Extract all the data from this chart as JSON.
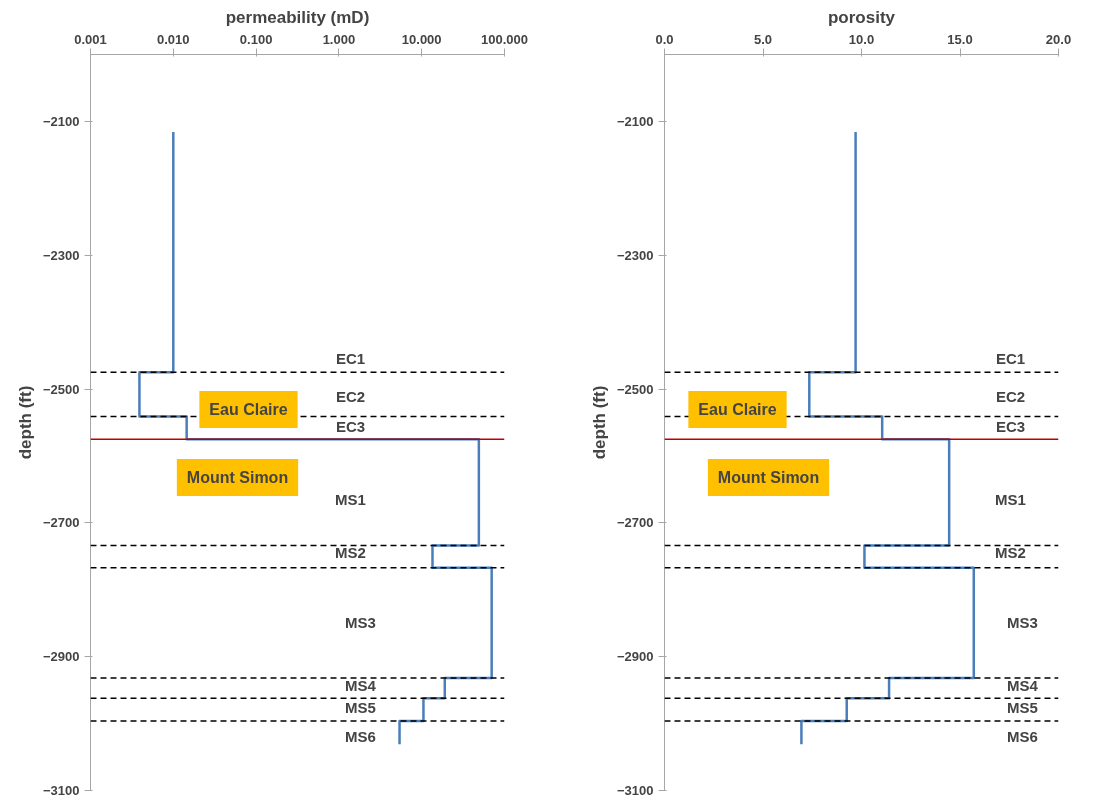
{
  "chart_data": [
    {
      "type": "line",
      "title": "permeability (mD)",
      "ylabel": "depth (ft)",
      "log": "x",
      "xlim": [
        0.001,
        100
      ],
      "xticks": [
        {
          "value": 0.001,
          "label": "0.001"
        },
        {
          "value": 0.01,
          "label": "0.010"
        },
        {
          "value": 0.1,
          "label": "0.100"
        },
        {
          "value": 1,
          "label": "1.000"
        },
        {
          "value": 10,
          "label": "10.000"
        },
        {
          "value": 100,
          "label": "100.000"
        }
      ],
      "ylim": [
        -3100,
        -2000
      ],
      "yticks": [
        -3100,
        -2900,
        -2700,
        -2500,
        -2300,
        -2100
      ],
      "series": [
        {
          "color": "#4a7ebb",
          "x": [
            0.01,
            0.01,
            0.0039,
            0.0039,
            0.0145,
            0.0145,
            49,
            49,
            13.5,
            13.5,
            70,
            70,
            19,
            19,
            10.5,
            10.5,
            5.4,
            5.4
          ],
          "values": [
            -2116,
            -2475,
            -2475,
            -2541,
            -2541,
            -2575,
            -2575,
            -2734,
            -2734,
            -2767,
            -2767,
            -2932,
            -2932,
            -2962,
            -2962,
            -2996,
            -2996,
            -3031
          ]
        }
      ],
      "ref_lines": [
        {
          "axis": "y",
          "value": -2475,
          "color": "#000000",
          "line_style": "dashed"
        },
        {
          "axis": "y",
          "value": -2541,
          "color": "#000000",
          "line_style": "dashed"
        },
        {
          "axis": "y",
          "value": -2575,
          "color": "#c00000",
          "line_style": "solid"
        },
        {
          "axis": "y",
          "value": -2734,
          "color": "#000000",
          "line_style": "dashed"
        },
        {
          "axis": "y",
          "value": -2767,
          "color": "#000000",
          "line_style": "dashed"
        },
        {
          "axis": "y",
          "value": -2932,
          "color": "#000000",
          "line_style": "dashed"
        },
        {
          "axis": "y",
          "value": -2962,
          "color": "#000000",
          "line_style": "dashed"
        },
        {
          "axis": "y",
          "value": -2996,
          "color": "#000000",
          "line_style": "dashed"
        }
      ],
      "annotations": [
        "Eau Claire",
        "Mount Simon",
        "EC1",
        "EC2",
        "EC3",
        "MS1",
        "MS2",
        "MS3",
        "MS4",
        "MS5",
        "MS6"
      ]
    },
    {
      "type": "line",
      "title": "porosity",
      "ylabel": "depth (ft)",
      "xlim": [
        0,
        20
      ],
      "xticks": [
        {
          "value": 0,
          "label": "0.0"
        },
        {
          "value": 5,
          "label": "5.0"
        },
        {
          "value": 10,
          "label": "10.0"
        },
        {
          "value": 15,
          "label": "15.0"
        },
        {
          "value": 20,
          "label": "20.0"
        }
      ],
      "ylim": [
        -3100,
        -2000
      ],
      "yticks": [
        -3100,
        -2900,
        -2700,
        -2500,
        -2300,
        -2100
      ],
      "series": [
        {
          "color": "#4a7ebb",
          "x": [
            9.7,
            9.7,
            7.35,
            7.35,
            11.05,
            11.05,
            14.45,
            14.45,
            10.15,
            10.15,
            15.7,
            15.7,
            11.4,
            11.4,
            9.25,
            9.25,
            6.95,
            6.95
          ],
          "values": [
            -2116,
            -2475,
            -2475,
            -2541,
            -2541,
            -2575,
            -2575,
            -2734,
            -2734,
            -2767,
            -2767,
            -2932,
            -2932,
            -2962,
            -2962,
            -2996,
            -2996,
            -3031
          ]
        }
      ],
      "ref_lines": [
        {
          "axis": "y",
          "value": -2475,
          "color": "#000000",
          "line_style": "dashed"
        },
        {
          "axis": "y",
          "value": -2541,
          "color": "#000000",
          "line_style": "dashed"
        },
        {
          "axis": "y",
          "value": -2575,
          "color": "#c00000",
          "line_style": "solid"
        },
        {
          "axis": "y",
          "value": -2734,
          "color": "#000000",
          "line_style": "dashed"
        },
        {
          "axis": "y",
          "value": -2767,
          "color": "#000000",
          "line_style": "dashed"
        },
        {
          "axis": "y",
          "value": -2932,
          "color": "#000000",
          "line_style": "dashed"
        },
        {
          "axis": "y",
          "value": -2962,
          "color": "#000000",
          "line_style": "dashed"
        },
        {
          "axis": "y",
          "value": -2996,
          "color": "#000000",
          "line_style": "dashed"
        }
      ],
      "annotations": [
        "Eau Claire",
        "Mount Simon",
        "EC1",
        "EC2",
        "EC3",
        "MS1",
        "MS2",
        "MS3",
        "MS4",
        "MS5",
        "MS6"
      ]
    }
  ]
}
